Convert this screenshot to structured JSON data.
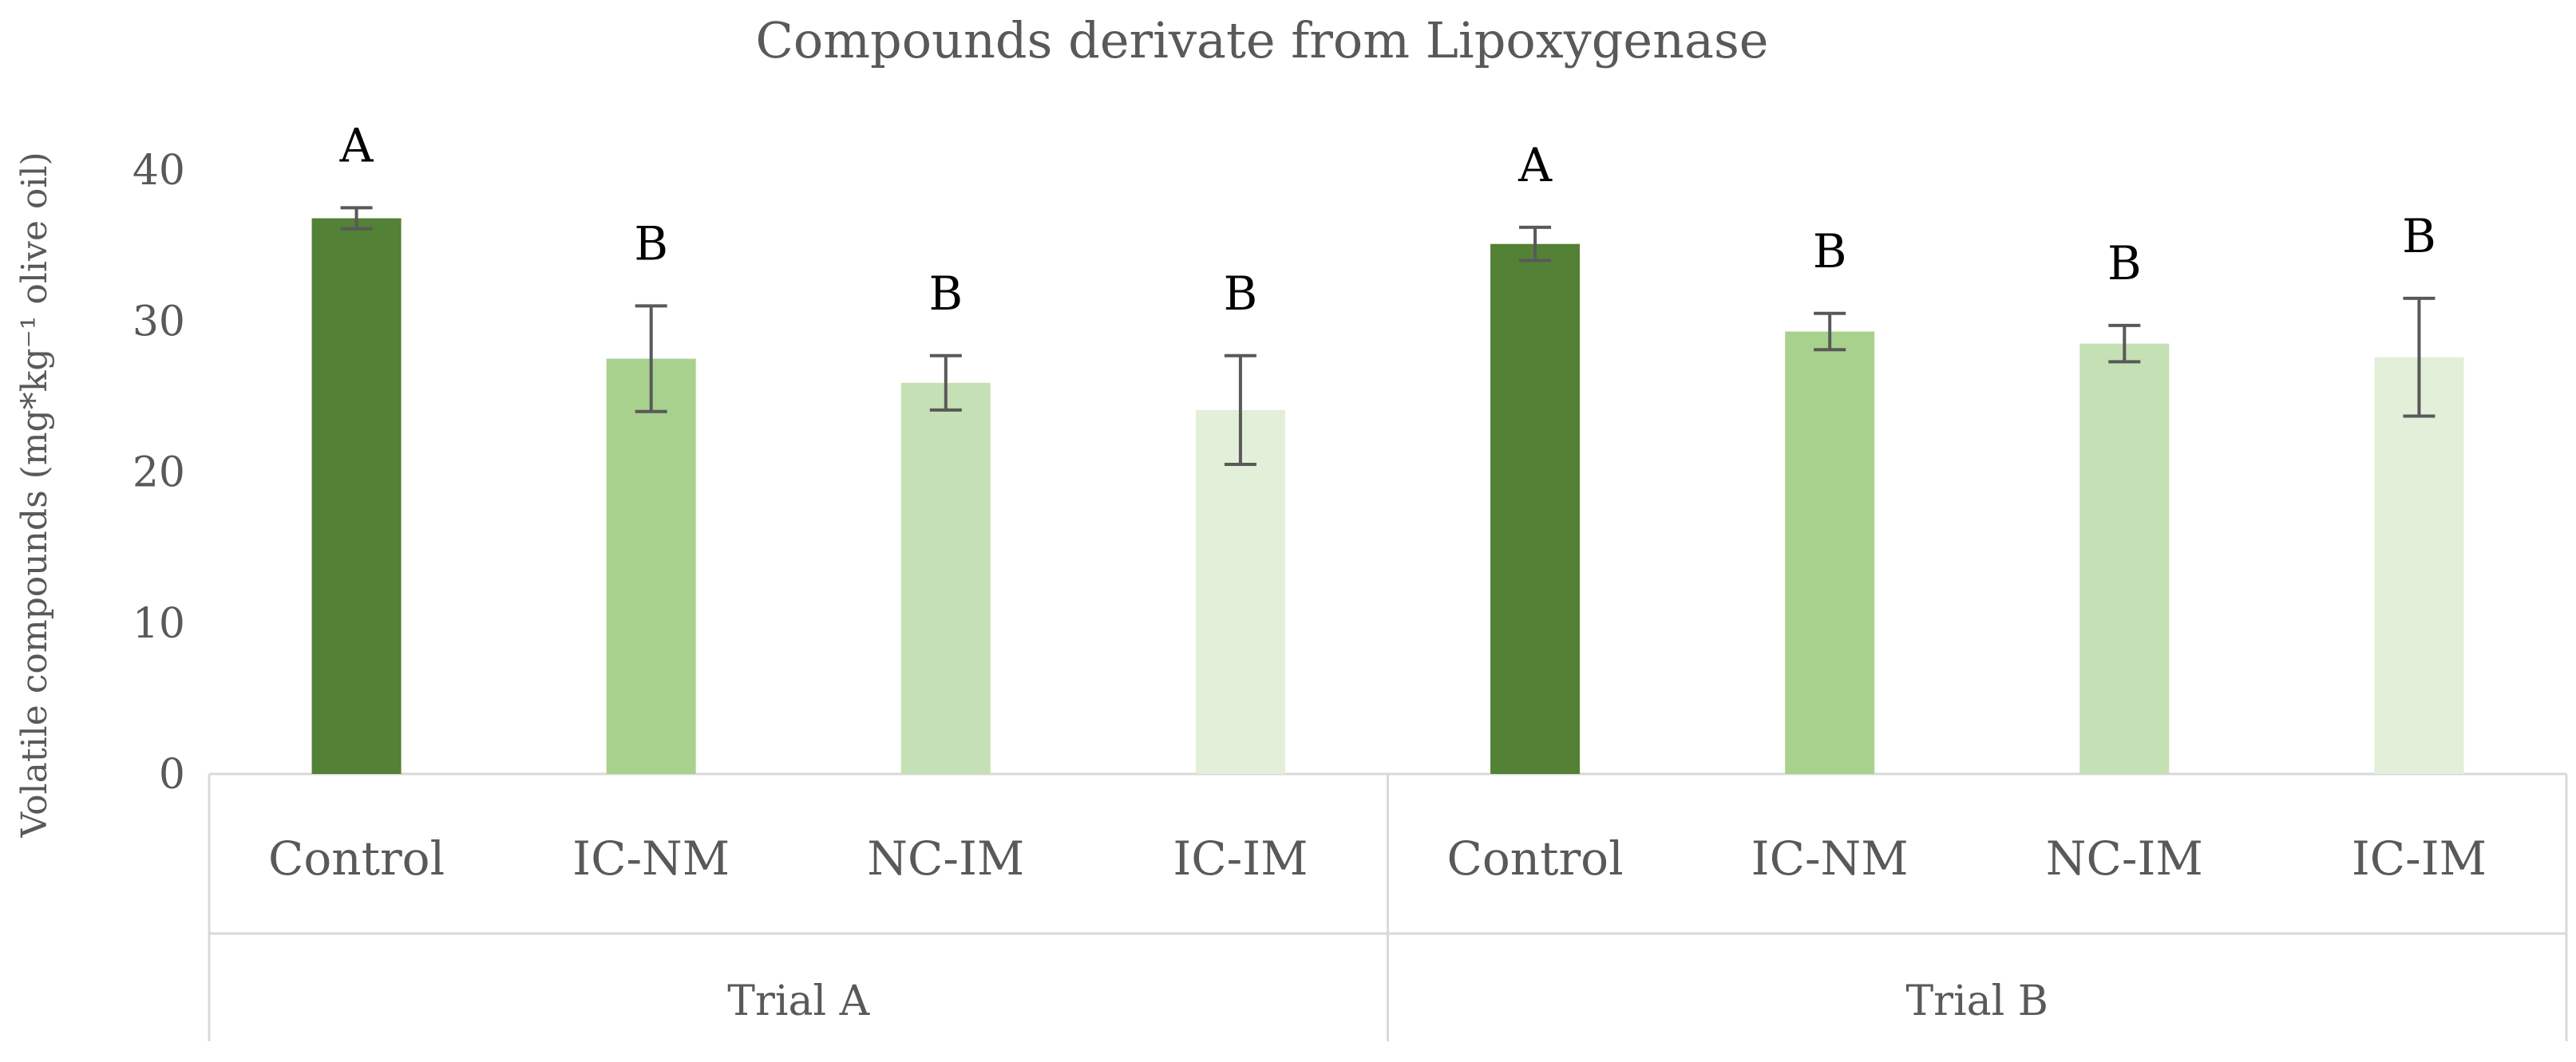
{
  "chart_data": {
    "type": "bar",
    "title": "Compounds derivate from Lipoxygenase",
    "ylabel": "Volatile compounds (mg*kg⁻¹ olive oil)",
    "xlabel": "",
    "ylim": [
      0,
      40
    ],
    "yticks": [
      0,
      10,
      20,
      30,
      40
    ],
    "grid": false,
    "groups": [
      {
        "name": "Trial A",
        "categories": [
          "Control",
          "IC-NM",
          "NC-IM",
          "IC-IM"
        ],
        "values": [
          36.8,
          27.5,
          25.9,
          24.1
        ],
        "errors": [
          0.7,
          3.5,
          1.8,
          3.6
        ],
        "labels": [
          "A",
          "B",
          "B",
          "B"
        ]
      },
      {
        "name": "Trial B",
        "categories": [
          "Control",
          "IC-NM",
          "NC-IM",
          "IC-IM"
        ],
        "values": [
          35.1,
          29.3,
          28.5,
          27.6
        ],
        "errors": [
          1.1,
          1.2,
          1.2,
          3.9
        ],
        "labels": [
          "A",
          "B",
          "B",
          "B"
        ]
      }
    ],
    "colors": [
      "#538135",
      "#a9d18e",
      "#c5e0b4",
      "#e2efd9"
    ],
    "error_bar_color": "#595959",
    "axis_color": "#d9d9d9"
  }
}
